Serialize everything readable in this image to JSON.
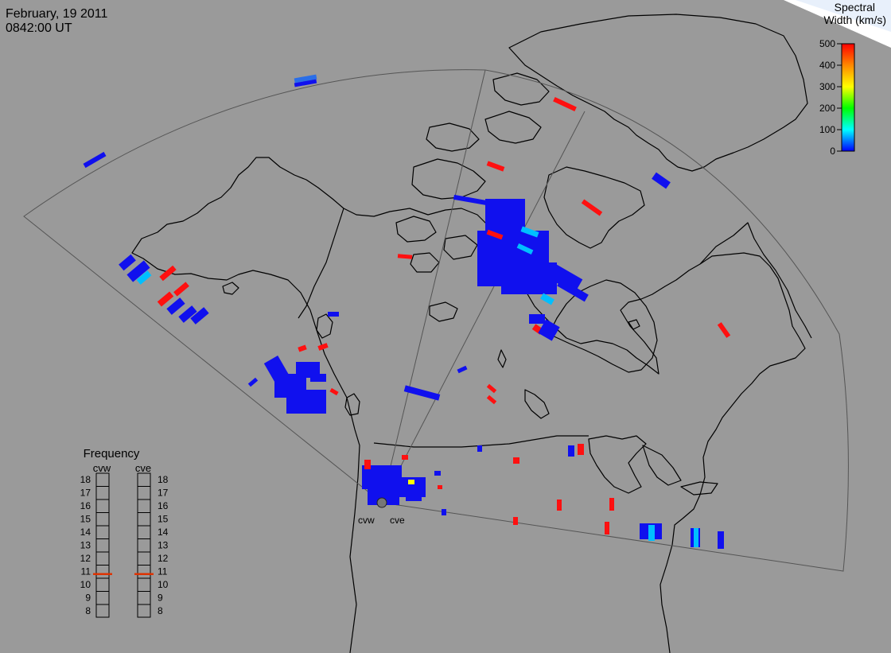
{
  "header": {
    "date": "February, 19 2011",
    "time": "0842:00 UT"
  },
  "colorbar": {
    "title_line1": "Spectral",
    "title_line2": "Width (km/s)",
    "ticks": [
      "500",
      "400",
      "300",
      "200",
      "100",
      "0"
    ],
    "gradient": [
      "#ff0000",
      "#ff8800",
      "#ffff00",
      "#00ff00",
      "#00ffff",
      "#0000ff"
    ]
  },
  "frequency_panel": {
    "title": "Frequency",
    "left_label": "cvw",
    "right_label": "cve",
    "scale": [
      "18",
      "17",
      "16",
      "15",
      "14",
      "13",
      "12",
      "11",
      "10",
      "9",
      "8"
    ],
    "cvw_mhz": 10.8,
    "cve_mhz": 10.8,
    "marker_color": "#dd3300"
  },
  "radars": {
    "cvw": "cvw",
    "cve": "cve"
  },
  "colors": {
    "background": "#9a9a9a",
    "coastline": "#000000",
    "fov": "#555555",
    "low_width": "#1010ee",
    "mid_width": "#00bfff",
    "high_width": "#ff1010"
  }
}
